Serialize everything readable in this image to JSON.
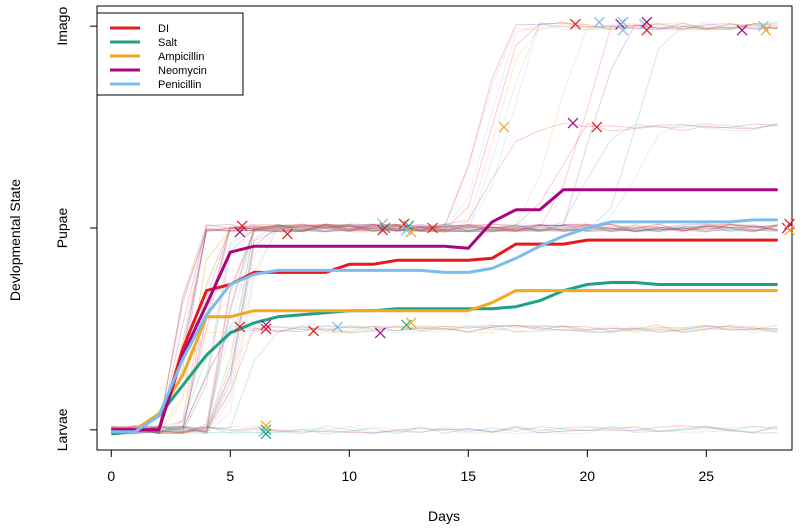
{
  "chart_data": {
    "type": "line",
    "title": "",
    "xlabel": "Days",
    "ylabel": "Devlopmental State",
    "xlim": [
      -0.6,
      28.6
    ],
    "ylim": [
      -0.1,
      2.1
    ],
    "x_ticks": [
      0,
      5,
      10,
      15,
      20,
      25
    ],
    "y_ticks": [
      {
        "value": 0,
        "label": "Larvae"
      },
      {
        "value": 1,
        "label": "Pupae"
      },
      {
        "value": 2,
        "label": "Imago"
      }
    ],
    "grid": false,
    "legend_position": "top-left",
    "x": [
      0,
      1,
      2,
      3,
      4,
      5,
      6,
      7,
      8,
      9,
      10,
      11,
      12,
      13,
      14,
      15,
      16,
      17,
      18,
      19,
      20,
      21,
      22,
      23,
      24,
      25,
      26,
      27,
      28
    ],
    "series": [
      {
        "name": "DI",
        "color": "#e41a1c",
        "values": [
          0.0,
          0.0,
          0.0,
          0.4,
          0.69,
          0.72,
          0.78,
          0.78,
          0.78,
          0.78,
          0.82,
          0.82,
          0.84,
          0.84,
          0.84,
          0.84,
          0.85,
          0.92,
          0.92,
          0.92,
          0.94,
          0.94,
          0.94,
          0.94,
          0.94,
          0.94,
          0.94,
          0.94,
          0.94
        ]
      },
      {
        "name": "Salt",
        "color": "#1fa187",
        "values": [
          -0.02,
          -0.01,
          0.07,
          0.22,
          0.37,
          0.48,
          0.53,
          0.56,
          0.57,
          0.58,
          0.59,
          0.59,
          0.6,
          0.6,
          0.6,
          0.6,
          0.6,
          0.61,
          0.64,
          0.69,
          0.72,
          0.73,
          0.73,
          0.72,
          0.72,
          0.72,
          0.72,
          0.72,
          0.72
        ]
      },
      {
        "name": "Ampicillin",
        "color": "#f5a623",
        "values": [
          -0.01,
          0.0,
          0.08,
          0.27,
          0.56,
          0.56,
          0.59,
          0.59,
          0.59,
          0.59,
          0.59,
          0.59,
          0.59,
          0.59,
          0.59,
          0.59,
          0.63,
          0.69,
          0.69,
          0.69,
          0.69,
          0.69,
          0.69,
          0.69,
          0.69,
          0.69,
          0.69,
          0.69,
          0.69
        ]
      },
      {
        "name": "Neomycin",
        "color": "#a8067e",
        "values": [
          0.0,
          0.0,
          0.0,
          0.37,
          0.62,
          0.88,
          0.91,
          0.91,
          0.91,
          0.91,
          0.91,
          0.91,
          0.91,
          0.91,
          0.91,
          0.9,
          1.03,
          1.09,
          1.09,
          1.19,
          1.19,
          1.19,
          1.19,
          1.19,
          1.19,
          1.19,
          1.19,
          1.19,
          1.19
        ]
      },
      {
        "name": "Penicillin",
        "color": "#7bbcec",
        "values": [
          -0.01,
          -0.01,
          0.07,
          0.35,
          0.57,
          0.72,
          0.77,
          0.79,
          0.79,
          0.79,
          0.79,
          0.79,
          0.79,
          0.79,
          0.78,
          0.78,
          0.8,
          0.85,
          0.91,
          0.96,
          1.0,
          1.03,
          1.03,
          1.03,
          1.03,
          1.03,
          1.03,
          1.04,
          1.04
        ]
      }
    ],
    "markers": [
      {
        "x": 5.5,
        "y": 1.01,
        "color": "#e41a1c"
      },
      {
        "x": 5.4,
        "y": 0.98,
        "color": "#a8067e"
      },
      {
        "x": 7.4,
        "y": 0.97,
        "color": "#e41a1c"
      },
      {
        "x": 11.4,
        "y": 1.02,
        "color": "#7bbcec"
      },
      {
        "x": 11.5,
        "y": 1.0,
        "color": "#1fa187"
      },
      {
        "x": 11.4,
        "y": 0.99,
        "color": "#e41a1c"
      },
      {
        "x": 12.3,
        "y": 1.02,
        "color": "#e41a1c"
      },
      {
        "x": 12.5,
        "y": 1.01,
        "color": "#1fa187"
      },
      {
        "x": 12.4,
        "y": 0.99,
        "color": "#7bbcec"
      },
      {
        "x": 12.6,
        "y": 0.98,
        "color": "#f5a623"
      },
      {
        "x": 13.5,
        "y": 1.0,
        "color": "#e41a1c"
      },
      {
        "x": 5.4,
        "y": 0.51,
        "color": "#e41a1c"
      },
      {
        "x": 6.5,
        "y": 0.52,
        "color": "#a8067e"
      },
      {
        "x": 6.5,
        "y": 0.5,
        "color": "#e41a1c"
      },
      {
        "x": 8.5,
        "y": 0.49,
        "color": "#e41a1c"
      },
      {
        "x": 9.5,
        "y": 0.51,
        "color": "#7bbcec"
      },
      {
        "x": 11.3,
        "y": 0.48,
        "color": "#a8067e"
      },
      {
        "x": 12.4,
        "y": 0.52,
        "color": "#1fa187"
      },
      {
        "x": 12.6,
        "y": 0.53,
        "color": "#f5a623"
      },
      {
        "x": 16.5,
        "y": 1.5,
        "color": "#f5a623"
      },
      {
        "x": 19.4,
        "y": 1.52,
        "color": "#a8067e"
      },
      {
        "x": 20.4,
        "y": 1.5,
        "color": "#e41a1c"
      },
      {
        "x": 19.5,
        "y": 2.01,
        "color": "#e41a1c"
      },
      {
        "x": 20.5,
        "y": 2.02,
        "color": "#7bbcec"
      },
      {
        "x": 21.4,
        "y": 2.01,
        "color": "#a8067e"
      },
      {
        "x": 21.5,
        "y": 2.02,
        "color": "#7bbcec"
      },
      {
        "x": 21.5,
        "y": 1.98,
        "color": "#7bbcec"
      },
      {
        "x": 22.4,
        "y": 2.01,
        "color": "#7bbcec"
      },
      {
        "x": 22.5,
        "y": 2.02,
        "color": "#a8067e"
      },
      {
        "x": 22.5,
        "y": 1.98,
        "color": "#e41a1c"
      },
      {
        "x": 26.5,
        "y": 1.98,
        "color": "#a8067e"
      },
      {
        "x": 27.4,
        "y": 2.0,
        "color": "#7bbcec"
      },
      {
        "x": 27.5,
        "y": 1.98,
        "color": "#f5a623"
      },
      {
        "x": 28.5,
        "y": 1.02,
        "color": "#e41a1c"
      },
      {
        "x": 28.4,
        "y": 1.0,
        "color": "#a8067e"
      },
      {
        "x": 28.5,
        "y": 0.99,
        "color": "#f5a623"
      },
      {
        "x": 6.5,
        "y": 0.02,
        "color": "#f5a623"
      },
      {
        "x": 6.5,
        "y": 0.0,
        "color": "#1fa187"
      },
      {
        "x": 6.4,
        "y": -0.01,
        "color": "#7bbcec"
      },
      {
        "x": 6.5,
        "y": -0.02,
        "color": "#1fa187"
      }
    ]
  }
}
